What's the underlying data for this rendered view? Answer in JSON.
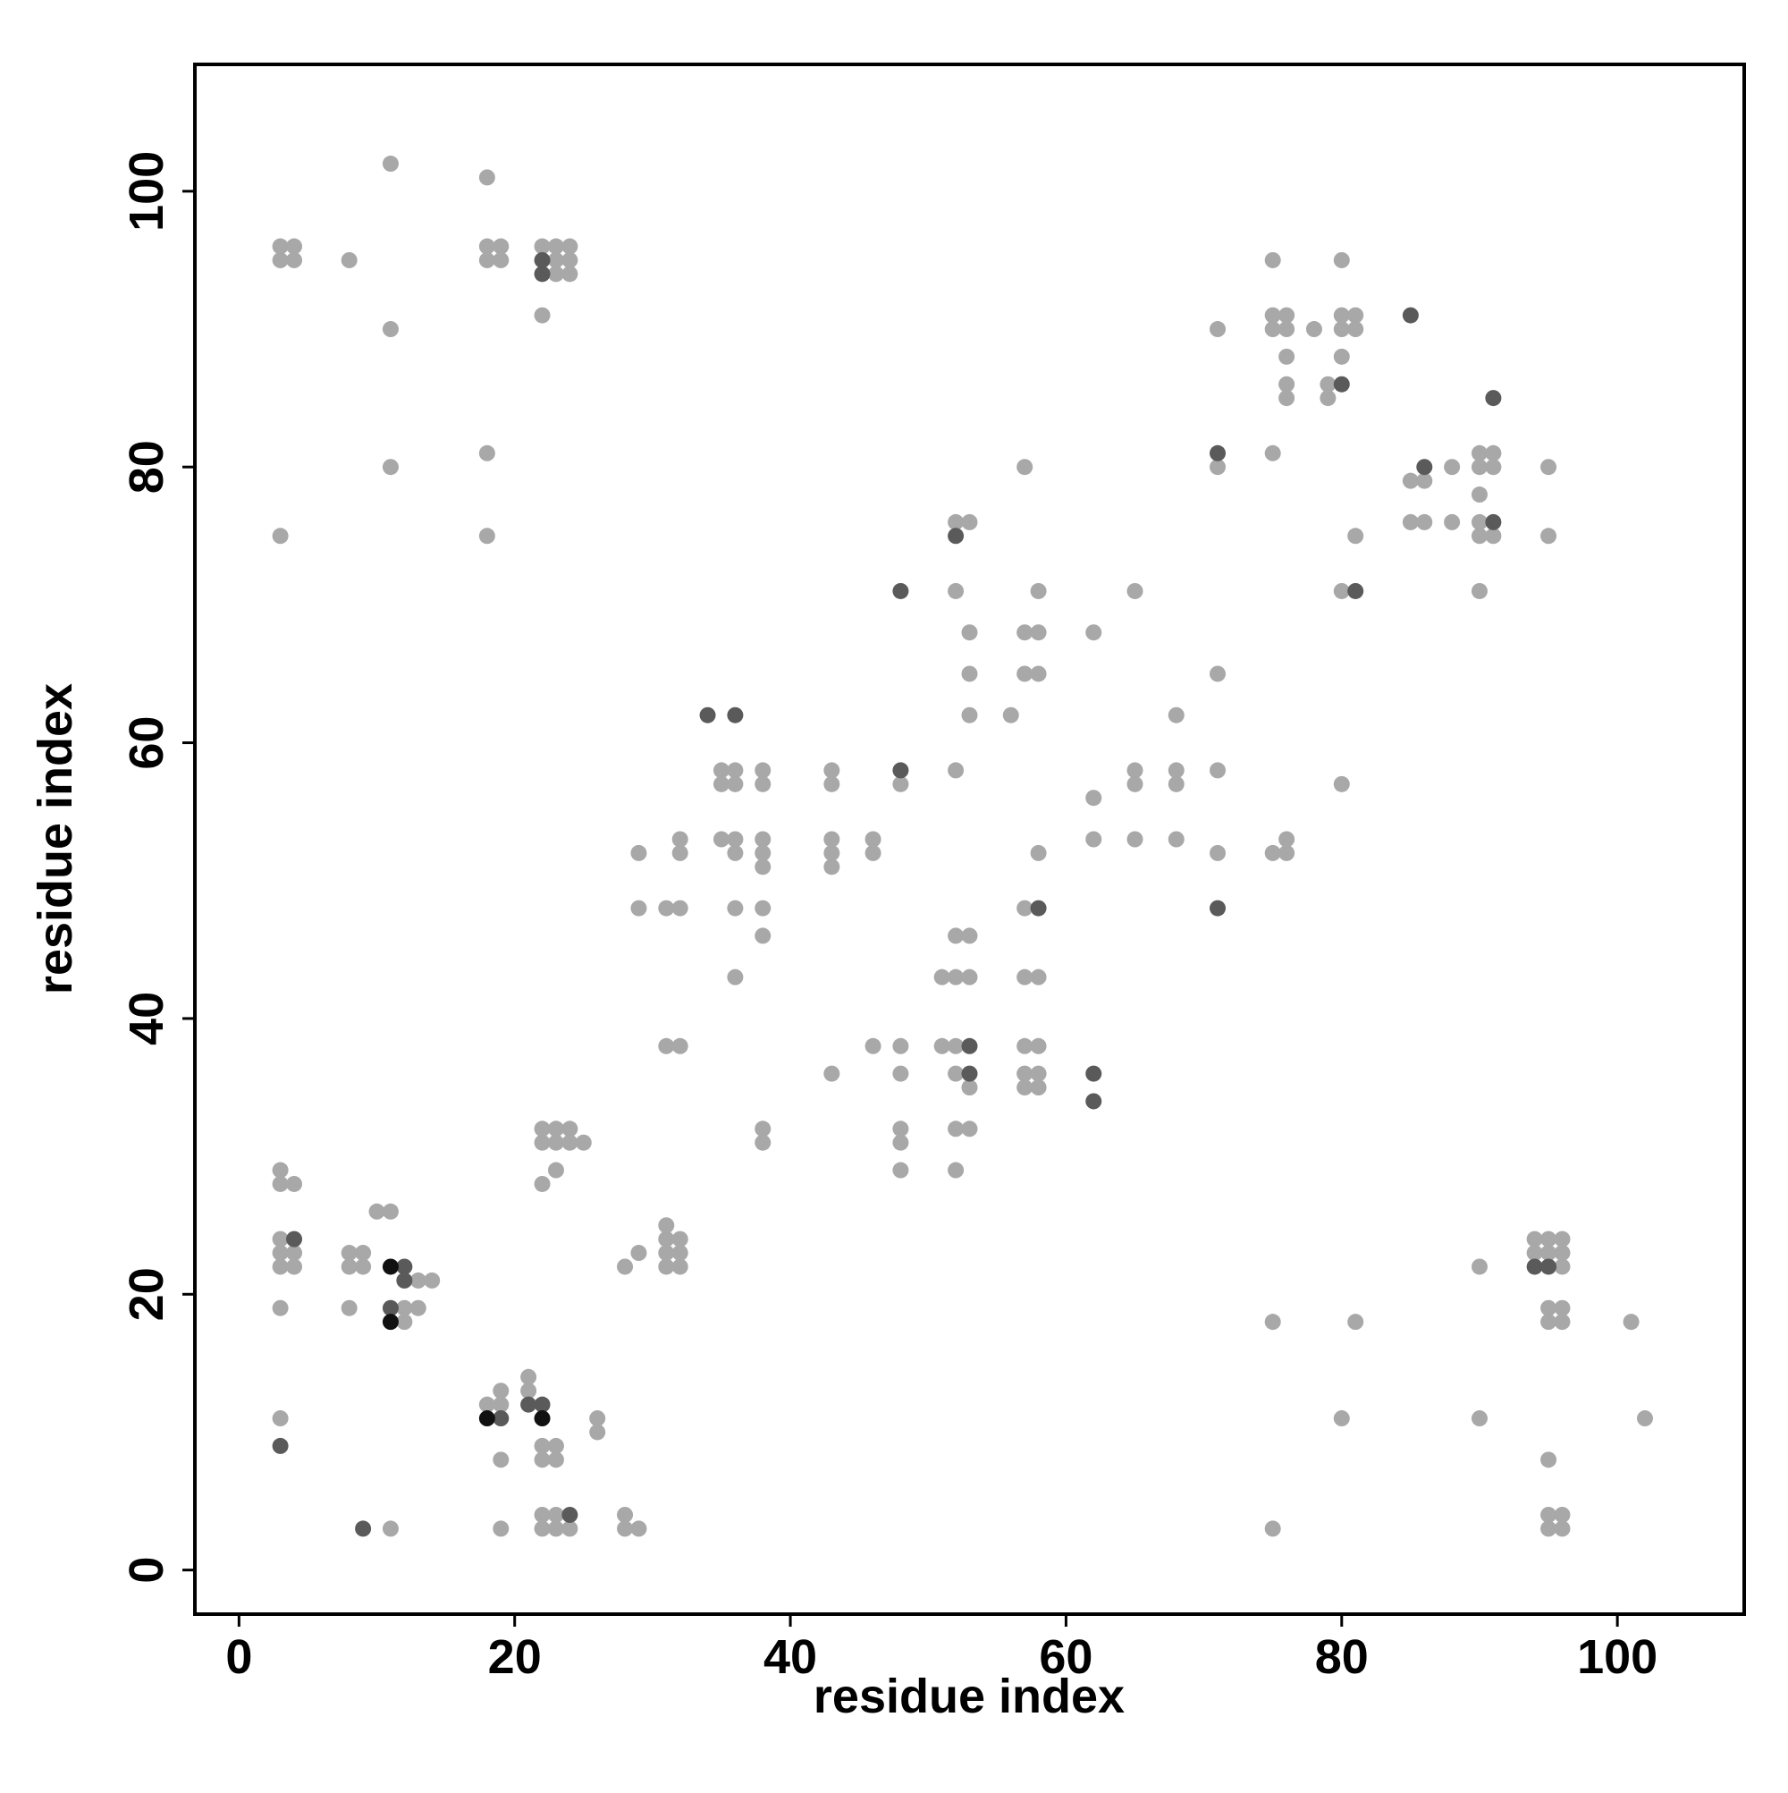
{
  "chart_data": {
    "type": "scatter",
    "x_label": "residue index",
    "y_label": "residue index",
    "xlim": [
      -3.2,
      109.2
    ],
    "ylim": [
      -3.2,
      109.2
    ],
    "xticks": [
      0,
      20,
      40,
      60,
      80,
      100
    ],
    "yticks": [
      0,
      20,
      40,
      60,
      80,
      100
    ],
    "series": [
      {
        "color": "#a8a8a8",
        "x": [
          3,
          4,
          3,
          4,
          8,
          11,
          18,
          18,
          19,
          18,
          19,
          22,
          23,
          24,
          23,
          24,
          23,
          24,
          22,
          11,
          11,
          18,
          3,
          18,
          75,
          80,
          75,
          76,
          75,
          76,
          78,
          80,
          81,
          80,
          81,
          71,
          76,
          80,
          76,
          79,
          76,
          79,
          71,
          75,
          57,
          85,
          86,
          88,
          90,
          91,
          90,
          91,
          90,
          95,
          85,
          86,
          88,
          90,
          90,
          91,
          95,
          81,
          90,
          80,
          52,
          53,
          52,
          58,
          65,
          53,
          57,
          58,
          62,
          53,
          57,
          58,
          71,
          53,
          56,
          68,
          48,
          52,
          35,
          36,
          35,
          36,
          38,
          38,
          43,
          43,
          62,
          65,
          65,
          68,
          68,
          71,
          35,
          36,
          38,
          43,
          46,
          32,
          36,
          38,
          43,
          46,
          32,
          29,
          38,
          43,
          62,
          65,
          68,
          76,
          58,
          71,
          75,
          76,
          80,
          29,
          31,
          32,
          36,
          38,
          57,
          38,
          52,
          53,
          36,
          51,
          52,
          53,
          57,
          58,
          31,
          32,
          46,
          48,
          51,
          52,
          57,
          58,
          43,
          48,
          52,
          57,
          58,
          53,
          57,
          58,
          38,
          48,
          52,
          53,
          38,
          48,
          22,
          23,
          24,
          22,
          23,
          24,
          25,
          48,
          52,
          23,
          22,
          3,
          3,
          4,
          10,
          11,
          31,
          31,
          32,
          31,
          32,
          31,
          32,
          28,
          29,
          3,
          3,
          4,
          3,
          4,
          8,
          9,
          8,
          9,
          13,
          14,
          3,
          8,
          12,
          13,
          12,
          18,
          19,
          19,
          21,
          21,
          3,
          26,
          26,
          19,
          22,
          23,
          22,
          23,
          22,
          23,
          28,
          11,
          19,
          22,
          23,
          24,
          28,
          29,
          94,
          95,
          96,
          94,
          95,
          96,
          96,
          90,
          75,
          81,
          95,
          96,
          95,
          96,
          101,
          80,
          90,
          102,
          95,
          95,
          96,
          95,
          96,
          75
        ],
        "y": [
          96,
          96,
          95,
          95,
          95,
          102,
          101,
          96,
          96,
          95,
          95,
          96,
          96,
          96,
          95,
          95,
          94,
          94,
          91,
          90,
          80,
          81,
          75,
          75,
          95,
          95,
          91,
          91,
          90,
          90,
          90,
          91,
          91,
          90,
          90,
          90,
          88,
          88,
          86,
          86,
          85,
          85,
          80,
          81,
          80,
          79,
          79,
          80,
          81,
          81,
          80,
          80,
          78,
          80,
          76,
          76,
          76,
          76,
          75,
          75,
          75,
          75,
          71,
          71,
          76,
          76,
          71,
          71,
          71,
          68,
          68,
          68,
          68,
          65,
          65,
          65,
          65,
          62,
          62,
          62,
          57,
          58,
          58,
          58,
          57,
          57,
          58,
          57,
          58,
          57,
          56,
          58,
          57,
          58,
          57,
          58,
          53,
          53,
          53,
          53,
          53,
          53,
          52,
          52,
          52,
          52,
          52,
          52,
          51,
          51,
          53,
          53,
          53,
          53,
          52,
          52,
          52,
          52,
          57,
          48,
          48,
          48,
          48,
          48,
          48,
          46,
          46,
          46,
          43,
          43,
          43,
          43,
          43,
          43,
          38,
          38,
          38,
          38,
          38,
          38,
          38,
          38,
          36,
          36,
          36,
          36,
          36,
          35,
          35,
          35,
          32,
          32,
          32,
          32,
          31,
          31,
          32,
          32,
          32,
          31,
          31,
          31,
          31,
          29,
          29,
          29,
          28,
          29,
          28,
          28,
          26,
          26,
          25,
          24,
          24,
          23,
          23,
          22,
          22,
          22,
          23,
          24,
          23,
          23,
          22,
          22,
          23,
          23,
          22,
          22,
          21,
          21,
          19,
          19,
          19,
          19,
          18,
          12,
          12,
          13,
          14,
          13,
          11,
          11,
          10,
          8,
          9,
          9,
          8,
          8,
          4,
          4,
          4,
          3,
          3,
          3,
          3,
          3,
          3,
          3,
          24,
          24,
          24,
          23,
          23,
          23,
          22,
          22,
          18,
          18,
          19,
          19,
          18,
          18,
          18,
          11,
          11,
          11,
          8,
          4,
          4,
          3,
          3,
          3
        ]
      },
      {
        "color": "#5a5a5a",
        "x": [
          22,
          22,
          85,
          91,
          71,
          86,
          80,
          91,
          52,
          48,
          81,
          34,
          36,
          48,
          58,
          71,
          53,
          53,
          62,
          62,
          4,
          12,
          12,
          11,
          21,
          22,
          19,
          3,
          24,
          9,
          94,
          95
        ],
        "y": [
          95,
          94,
          91,
          85,
          81,
          80,
          86,
          76,
          75,
          71,
          71,
          62,
          62,
          58,
          48,
          48,
          38,
          36,
          36,
          34,
          24,
          22,
          21,
          19,
          12,
          12,
          11,
          9,
          4,
          3,
          22,
          22
        ]
      },
      {
        "color": "#111111",
        "x": [
          11,
          11,
          18,
          22
        ],
        "y": [
          22,
          18,
          11,
          11
        ]
      }
    ]
  }
}
